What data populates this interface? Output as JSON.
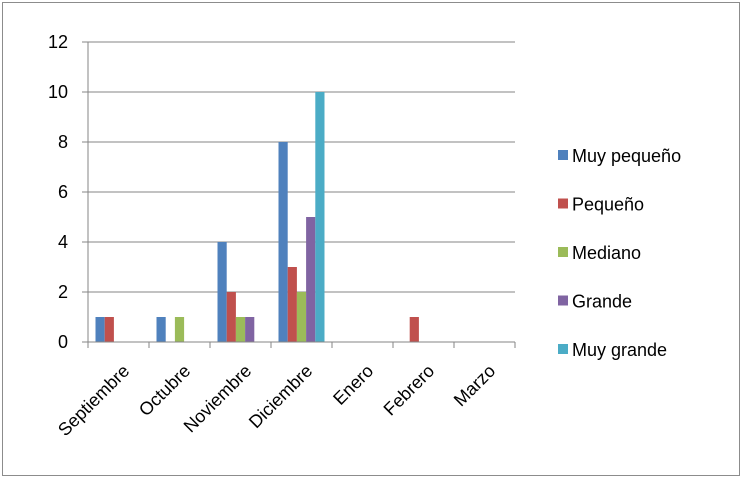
{
  "chart_data": {
    "type": "bar",
    "categories": [
      "Septiembre",
      "Octubre",
      "Noviembre",
      "Diciembre",
      "Enero",
      "Febrero",
      "Marzo"
    ],
    "series": [
      {
        "name": "Muy pequeño",
        "color": "#4F81BD",
        "values": [
          1,
          1,
          4,
          8,
          0,
          0,
          0
        ]
      },
      {
        "name": "Pequeño",
        "color": "#C0504D",
        "values": [
          1,
          0,
          2,
          3,
          0,
          1,
          0
        ]
      },
      {
        "name": "Mediano",
        "color": "#9BBB59",
        "values": [
          0,
          1,
          1,
          2,
          0,
          0,
          0
        ]
      },
      {
        "name": "Grande",
        "color": "#8064A2",
        "values": [
          0,
          0,
          1,
          5,
          0,
          0,
          0
        ]
      },
      {
        "name": "Muy grande",
        "color": "#4BACC6",
        "values": [
          0,
          0,
          0,
          10,
          0,
          0,
          0
        ]
      }
    ],
    "ylim": [
      0,
      12
    ],
    "yticks": [
      0,
      2,
      4,
      6,
      8,
      10,
      12
    ],
    "grid": true,
    "legend_position": "right",
    "title": "",
    "xlabel": "",
    "ylabel": ""
  }
}
